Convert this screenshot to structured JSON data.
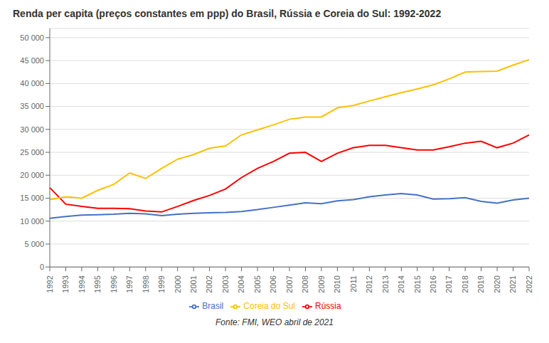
{
  "chart_data": {
    "type": "line",
    "title": "Renda per capita (preços constantes em ppp) do Brasil, Rússia e Coreia do Sul: 1992-2022",
    "annotations": [
      "Fonte: FMI, WEO abril de 2021"
    ],
    "categories": [
      "1992",
      "1993",
      "1994",
      "1995",
      "1996",
      "1997",
      "1998",
      "1999",
      "2000",
      "2001",
      "2002",
      "2003",
      "2004",
      "2005",
      "2006",
      "2007",
      "2008",
      "2009",
      "2010",
      "2011",
      "2012",
      "2013",
      "2014",
      "2015",
      "2016",
      "2017",
      "2018",
      "2019",
      "2020",
      "2021",
      "2022"
    ],
    "series": [
      {
        "name": "Brasil",
        "color": "#4472C4",
        "values": [
          10600,
          11000,
          11300,
          11400,
          11500,
          11700,
          11600,
          11200,
          11500,
          11700,
          11800,
          11900,
          12100,
          12500,
          13000,
          13500,
          14000,
          13800,
          14400,
          14700,
          15300,
          15700,
          16000,
          15700,
          14800,
          14900,
          15100,
          14300,
          13900,
          14600,
          15000
        ]
      },
      {
        "name": "Rússia",
        "color": "#FF0000",
        "values": [
          17300,
          13700,
          13200,
          12800,
          12800,
          12700,
          12200,
          12000,
          13200,
          14500,
          15600,
          17000,
          19500,
          21500,
          23000,
          24800,
          25000,
          23000,
          24800,
          26000,
          26500,
          26500,
          26000,
          25500,
          25500,
          26200,
          27000,
          27400,
          26000,
          27000,
          28800
        ]
      },
      {
        "name": "Coreia do Sul",
        "color": "#FFC000",
        "values": [
          14700,
          15300,
          15000,
          16700,
          18000,
          20500,
          19300,
          21500,
          23500,
          24500,
          25900,
          26400,
          28800,
          29900,
          31000,
          32200,
          32700,
          32700,
          34700,
          35200,
          36200,
          37100,
          38000,
          38800,
          39700,
          41000,
          42500,
          42600,
          42700,
          44000,
          45200
        ]
      }
    ],
    "ylim": [
      0,
      52000
    ],
    "yticks": [
      0,
      {
        "value": 5000,
        "label": "5 000"
      },
      {
        "value": 10000,
        "label": "10 000"
      },
      {
        "value": 15000,
        "label": "15 000"
      },
      {
        "value": 20000,
        "label": "20 000"
      },
      {
        "value": 25000,
        "label": "25 000"
      },
      {
        "value": 30000,
        "label": "30 000"
      },
      {
        "value": 35000,
        "label": "35 000"
      },
      {
        "value": 40000,
        "label": "40 000"
      },
      {
        "value": 45000,
        "label": "45 000"
      },
      {
        "value": 50000,
        "label": "50 000"
      }
    ],
    "grid": true,
    "legend": "bottom"
  }
}
